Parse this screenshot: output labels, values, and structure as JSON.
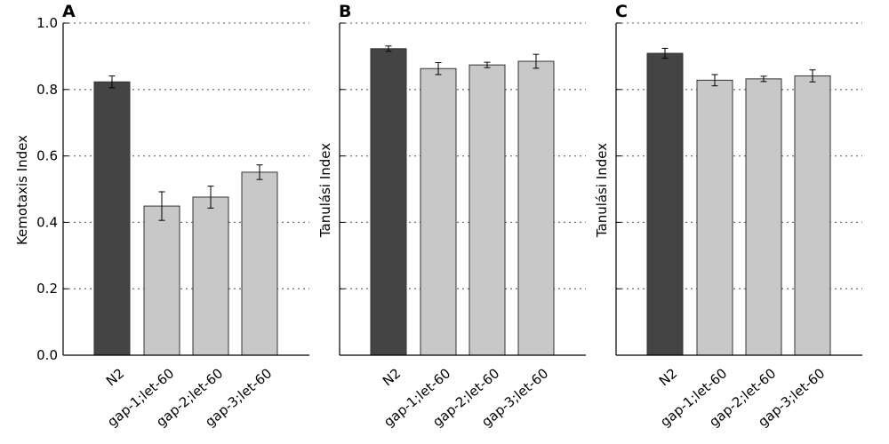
{
  "colors": {
    "control": "#444444",
    "mutant": "#c8c8c8",
    "bar_edge": "#333333",
    "grid": "#777777",
    "axis": "#000000"
  },
  "chart_data": [
    {
      "panel": "A",
      "type": "bar",
      "ylabel": "Kemotaxis Index",
      "ylim": [
        0,
        1.0
      ],
      "yticks": [
        "0.0",
        "0.2",
        "0.4",
        "0.6",
        "0.8",
        "1.0"
      ],
      "show_ytick_labels": true,
      "grid": "horizontal-dotted",
      "categories": [
        "N2",
        "gap-1;let-60",
        "gap-2;let-60",
        "gap-3;let-60"
      ],
      "values": [
        0.823,
        0.449,
        0.476,
        0.551
      ],
      "errors": [
        0.018,
        0.043,
        0.033,
        0.022
      ]
    },
    {
      "panel": "B",
      "type": "bar",
      "ylabel": "Tanulási Index",
      "ylim": [
        0,
        1.0
      ],
      "yticks": [
        "",
        "",
        "",
        "",
        "",
        ""
      ],
      "show_ytick_labels": false,
      "grid": "horizontal-dotted",
      "categories": [
        "N2",
        "gap-1;let-60",
        "gap-2;let-60",
        "gap-3;let-60"
      ],
      "values": [
        0.923,
        0.863,
        0.874,
        0.885
      ],
      "errors": [
        0.008,
        0.018,
        0.008,
        0.021
      ]
    },
    {
      "panel": "C",
      "type": "bar",
      "ylabel": "Tanulási Index",
      "ylim": [
        0,
        1.0
      ],
      "yticks": [
        "",
        "",
        "",
        "",
        "",
        ""
      ],
      "show_ytick_labels": false,
      "grid": "horizontal-dotted",
      "categories": [
        "N2",
        "gap-1;let-60",
        "gap-2;let-60",
        "gap-3;let-60"
      ],
      "values": [
        0.909,
        0.828,
        0.832,
        0.841
      ],
      "errors": [
        0.015,
        0.017,
        0.008,
        0.018
      ]
    }
  ]
}
